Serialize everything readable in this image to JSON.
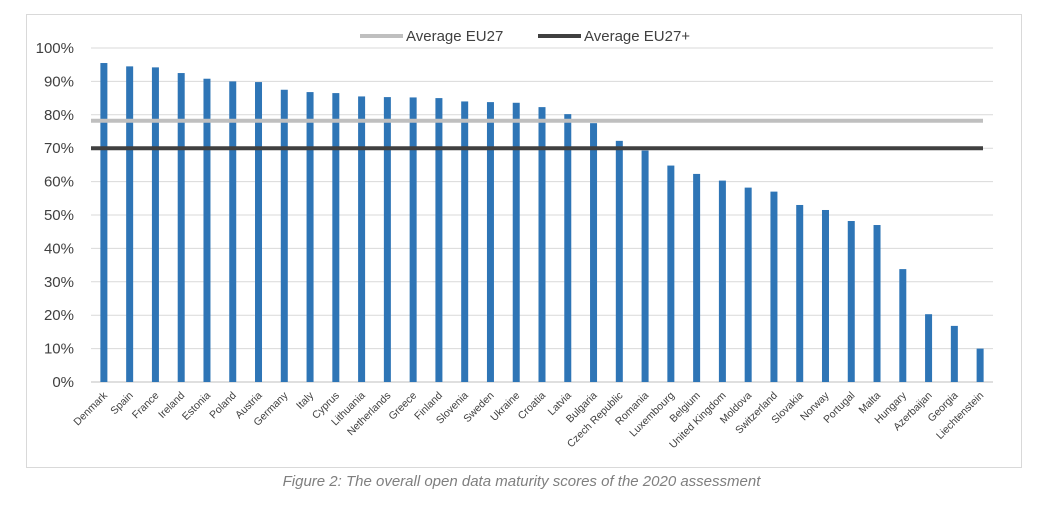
{
  "chart_data": {
    "type": "bar",
    "categories": [
      "Denmark",
      "Spain",
      "France",
      "Ireland",
      "Estonia",
      "Poland",
      "Austria",
      "Germany",
      "Italy",
      "Cyprus",
      "Lithuania",
      "Netherlands",
      "Greece",
      "Finland",
      "Slovenia",
      "Sweden",
      "Ukraine",
      "Croatia",
      "Latvia",
      "Bulgaria",
      "Czech Republic",
      "Romania",
      "Luxembourg",
      "Belgium",
      "United Kingdom",
      "Moldova",
      "Switzerland",
      "Slovakia",
      "Norway",
      "Portugal",
      "Malta",
      "Hungary",
      "Azerbaijan",
      "Georgia",
      "Liechtenstein"
    ],
    "values": [
      95.5,
      94.5,
      94.2,
      92.5,
      90.8,
      90.0,
      89.8,
      87.5,
      86.8,
      86.5,
      85.5,
      85.3,
      85.2,
      85.0,
      84.0,
      83.8,
      83.6,
      82.3,
      80.2,
      77.5,
      72.2,
      69.3,
      64.8,
      62.3,
      60.3,
      58.2,
      57.0,
      53.0,
      51.5,
      48.2,
      47.0,
      33.8,
      20.3,
      16.8,
      10.0
    ],
    "reference_lines": [
      {
        "name": "Average EU27",
        "value": 78.2,
        "color": "#bfbfbf"
      },
      {
        "name": "Average EU27+",
        "value": 70.0,
        "color": "#404040"
      }
    ],
    "bar_color": "#2e75b6",
    "ylim": [
      0,
      100
    ],
    "y_ticks": [
      "0%",
      "10%",
      "20%",
      "30%",
      "40%",
      "50%",
      "60%",
      "70%",
      "80%",
      "90%",
      "100%"
    ],
    "grid": true,
    "legend_position": "top-center",
    "xlabel": "",
    "ylabel": ""
  },
  "caption": "Figure 2: The overall open data maturity scores of the 2020 assessment"
}
